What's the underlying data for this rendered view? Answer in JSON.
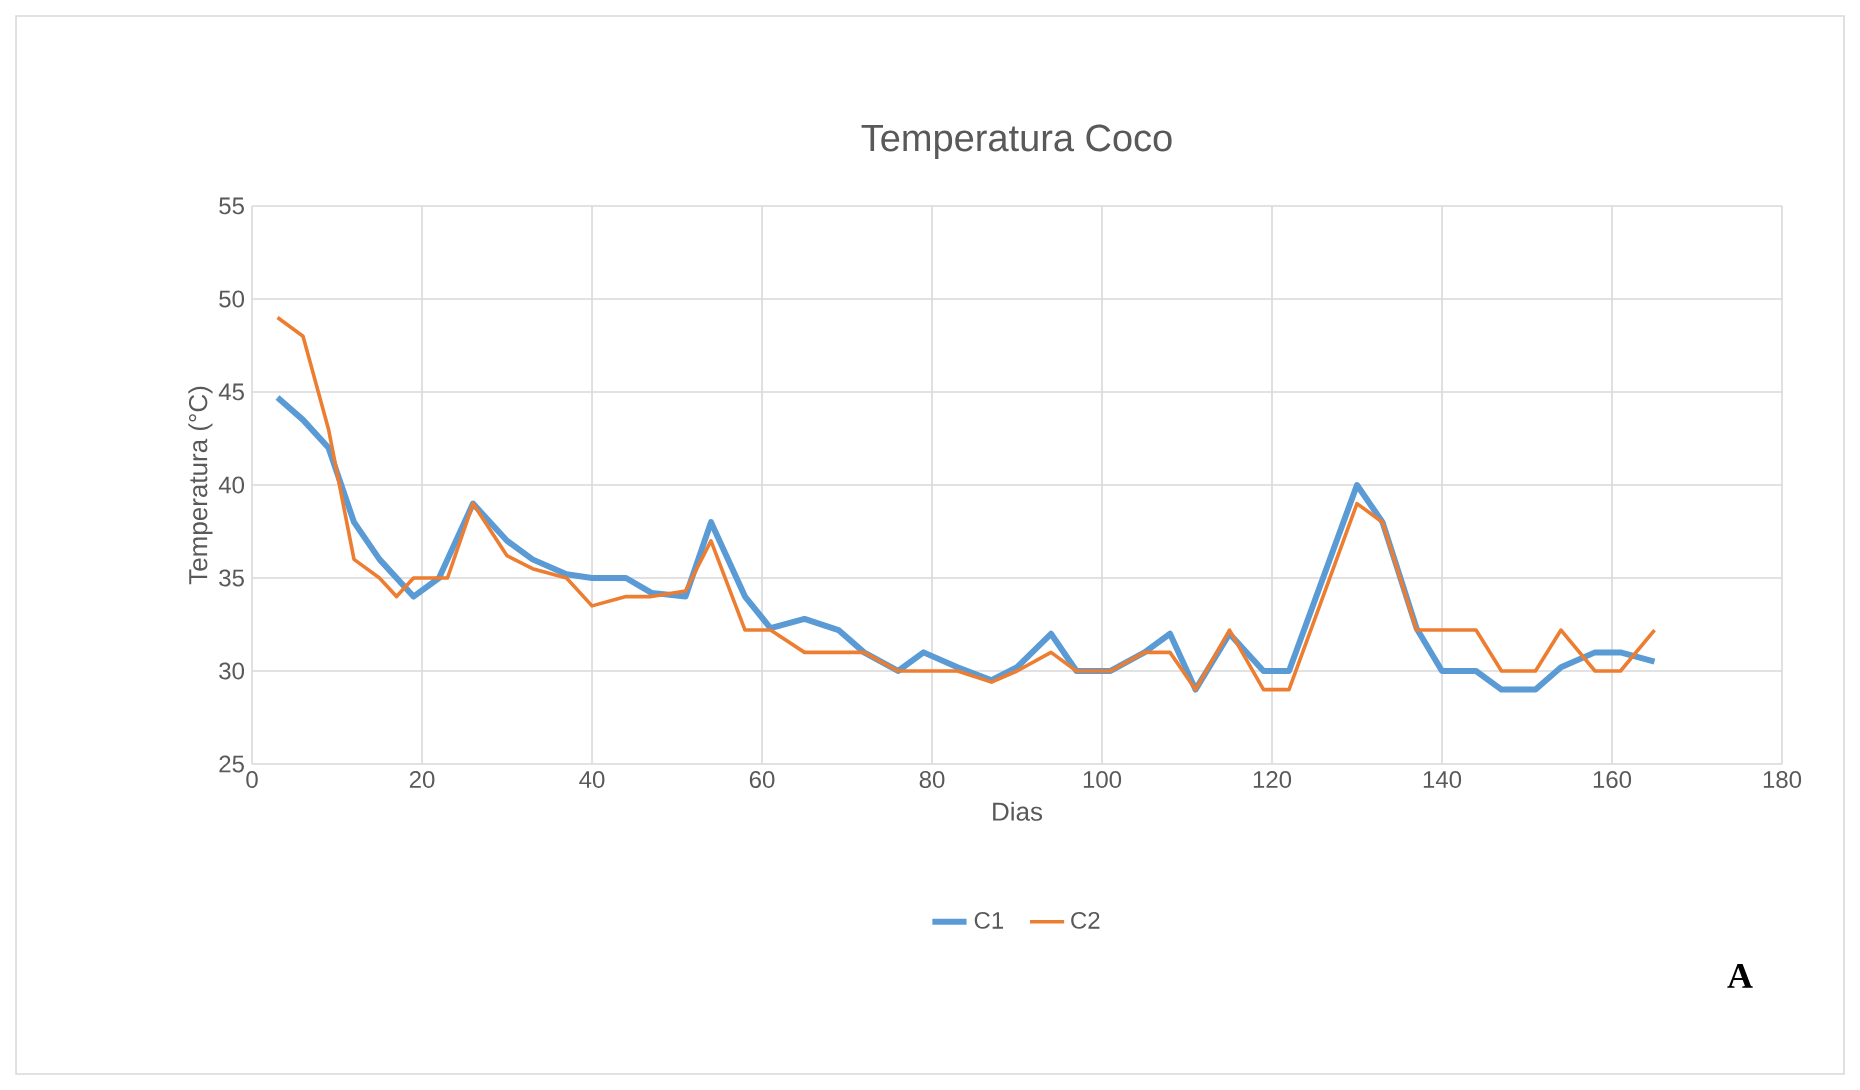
{
  "chart_data": {
    "type": "line",
    "title": "Temperatura  Coco",
    "xlabel": "Dias",
    "ylabel": "Temperatura (°C)",
    "xlim": [
      0,
      180
    ],
    "xticks": [
      0,
      20,
      40,
      60,
      80,
      100,
      120,
      140,
      160,
      180
    ],
    "ylim": [
      25,
      55
    ],
    "yticks": [
      25,
      30,
      35,
      40,
      45,
      50,
      55
    ],
    "grid": true,
    "legend": "bottom",
    "marker": "none",
    "line_style": "solid",
    "annotations": [
      "A"
    ],
    "series": [
      {
        "name": "C1",
        "color": "#5b9bd5",
        "x": [
          3,
          6,
          9,
          12,
          15,
          19,
          22,
          26,
          30,
          33,
          37,
          40,
          44,
          47,
          51,
          54,
          58,
          61,
          65,
          69,
          72,
          76,
          79,
          83,
          87,
          90,
          94,
          97,
          101,
          105,
          108,
          111,
          115,
          119,
          122,
          126,
          130,
          133,
          137,
          140,
          144,
          147,
          151,
          154,
          158,
          161,
          165
        ],
        "values": [
          44.7,
          43.5,
          42,
          38,
          36,
          34,
          35,
          39,
          37,
          36,
          35.2,
          35,
          35,
          34.2,
          34,
          38,
          34,
          32.3,
          32.8,
          32.2,
          31,
          30,
          31,
          30.2,
          29.5,
          30.2,
          32,
          30,
          30,
          31,
          32,
          29,
          32,
          30,
          30,
          35,
          40,
          38,
          32.3,
          30,
          30,
          29,
          29,
          30.2,
          31,
          31,
          30.5
        ]
      },
      {
        "name": "C2",
        "color": "#ed7d31",
        "x": [
          3,
          6,
          9,
          12,
          15,
          17,
          19,
          23,
          26,
          30,
          33,
          37,
          40,
          44,
          47,
          51,
          54,
          58,
          61,
          65,
          69,
          72,
          76,
          79,
          83,
          87,
          90,
          94,
          97,
          101,
          105,
          108,
          111,
          115,
          119,
          122,
          126,
          130,
          133,
          137,
          140,
          144,
          147,
          151,
          154,
          158,
          161,
          165
        ],
        "values": [
          49,
          48,
          43,
          36,
          35,
          34,
          35,
          35,
          39,
          36.2,
          35.5,
          35,
          33.5,
          34,
          34,
          34.3,
          37,
          32.2,
          32.2,
          31,
          31,
          31,
          30,
          30,
          30,
          29.4,
          30,
          31,
          30,
          30,
          31,
          31,
          29,
          32.2,
          29,
          29,
          34,
          39,
          38,
          32.2,
          32.2,
          32.2,
          30,
          30,
          32.2,
          30,
          30,
          32.2
        ]
      }
    ]
  }
}
